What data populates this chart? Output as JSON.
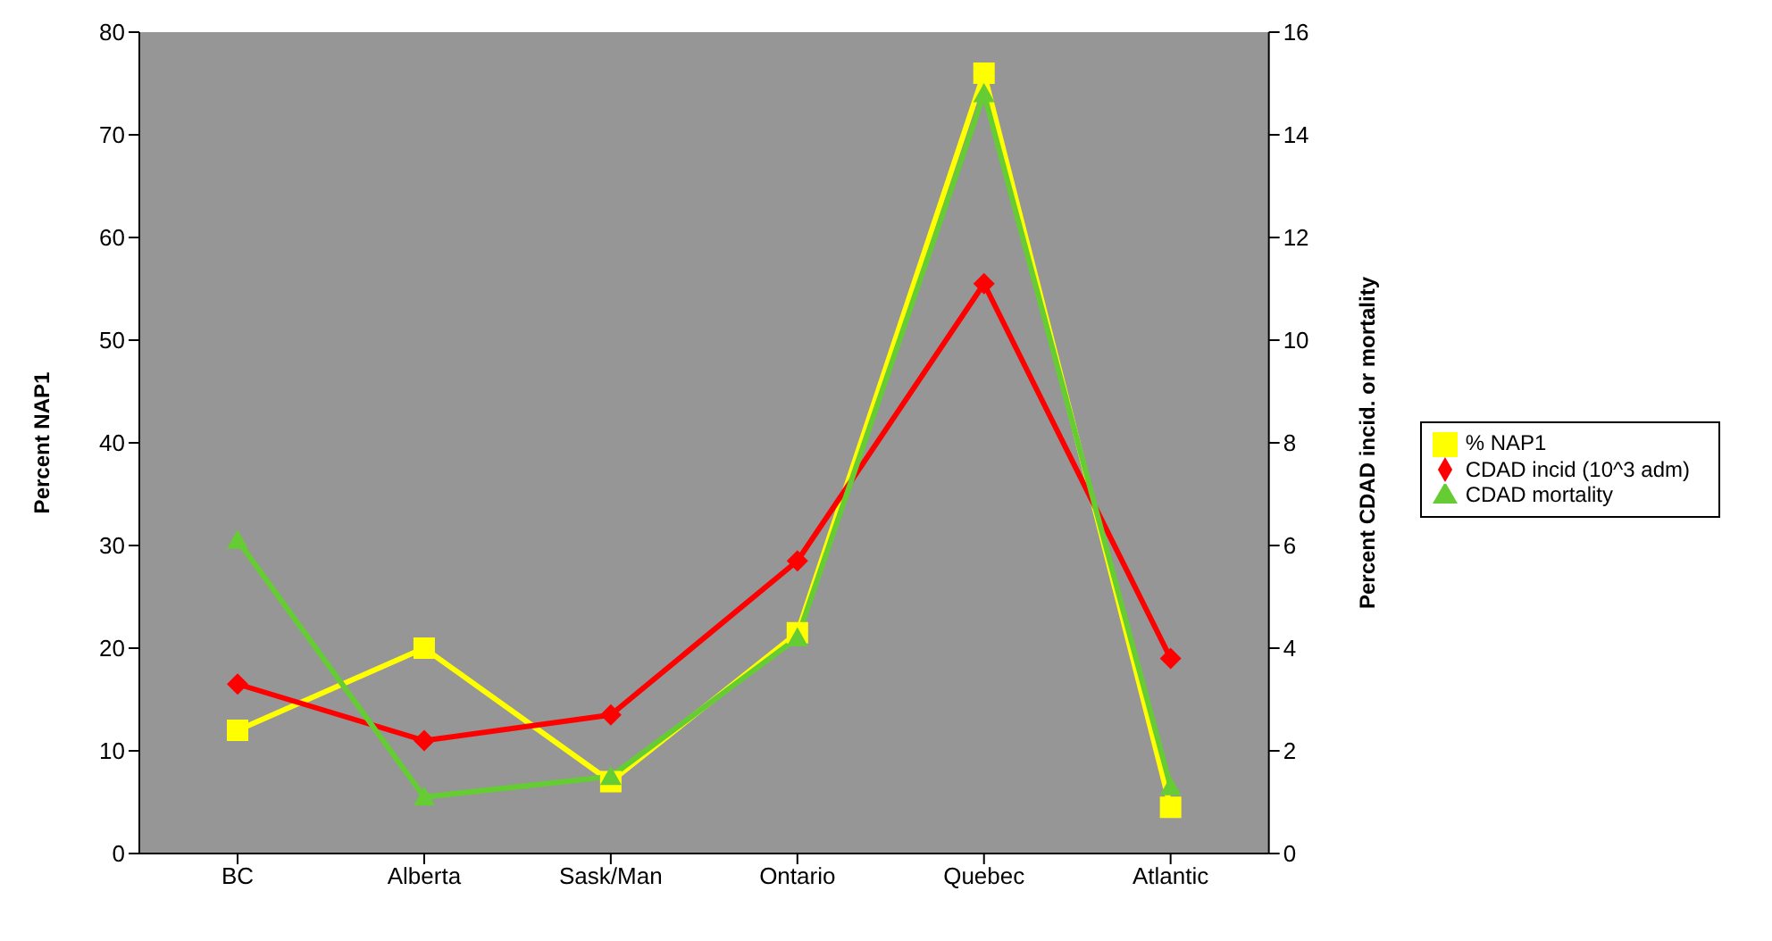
{
  "chart_data": {
    "type": "line",
    "categories": [
      "BC",
      "Alberta",
      "Sask/Man",
      "Ontario",
      "Quebec",
      "Atlantic"
    ],
    "ylabel": "Percent NAP1",
    "y2label": "Percent CDAD incid. or mortality",
    "ylim": [
      0,
      80
    ],
    "yticks": [
      0,
      10,
      20,
      30,
      40,
      50,
      60,
      70,
      80
    ],
    "y2lim": [
      0,
      16
    ],
    "y2ticks": [
      0,
      2,
      4,
      6,
      8,
      10,
      12,
      14,
      16
    ],
    "grid": false,
    "legend": "right",
    "series": [
      {
        "name": "% NAP1",
        "color": "#ffff00",
        "marker": "square",
        "values": [
          12,
          20,
          7,
          21.5,
          76,
          4.5
        ]
      },
      {
        "name": "CDAD incid (10^3 adm)",
        "color": "#ff0000",
        "marker": "diamond",
        "axis": "y2",
        "values": [
          3.3,
          2.2,
          2.7,
          5.7,
          11.1,
          3.8
        ]
      },
      {
        "name": "CDAD mortality",
        "color": "#66cc33",
        "marker": "triangle",
        "axis": "y2",
        "values": [
          6.1,
          1.1,
          1.5,
          4.2,
          14.8,
          1.3
        ]
      }
    ]
  }
}
